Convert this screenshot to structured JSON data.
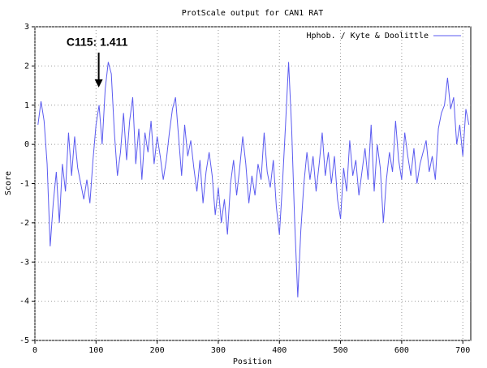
{
  "chart_data": {
    "type": "line",
    "title": "ProtScale output for CAN1 RAT",
    "x_label": "Position",
    "y_label": "Score",
    "xlim": [
      0,
      713
    ],
    "ylim": [
      -5,
      3
    ],
    "xticks": [
      0,
      100,
      200,
      300,
      400,
      500,
      600,
      700
    ],
    "yticks": [
      -5,
      -4,
      -3,
      -2,
      -1,
      0,
      1,
      2,
      3
    ],
    "grid": true,
    "legend": "top-right",
    "annotation": {
      "text": "C115: 1.411",
      "x": 115,
      "y": 1.411
    },
    "x": [
      5,
      10,
      15,
      20,
      25,
      30,
      35,
      40,
      45,
      50,
      55,
      60,
      65,
      70,
      75,
      80,
      85,
      90,
      95,
      100,
      105,
      110,
      115,
      120,
      125,
      130,
      135,
      140,
      145,
      150,
      155,
      160,
      165,
      170,
      175,
      180,
      185,
      190,
      195,
      200,
      205,
      210,
      215,
      220,
      225,
      230,
      235,
      240,
      245,
      250,
      255,
      260,
      265,
      270,
      275,
      280,
      285,
      290,
      295,
      300,
      305,
      310,
      315,
      320,
      325,
      330,
      335,
      340,
      345,
      350,
      355,
      360,
      365,
      370,
      375,
      380,
      385,
      390,
      395,
      400,
      405,
      410,
      415,
      420,
      425,
      430,
      435,
      440,
      445,
      450,
      455,
      460,
      465,
      470,
      475,
      480,
      485,
      490,
      495,
      500,
      505,
      510,
      515,
      520,
      525,
      530,
      535,
      540,
      545,
      550,
      555,
      560,
      565,
      570,
      575,
      580,
      585,
      590,
      595,
      600,
      605,
      610,
      615,
      620,
      625,
      630,
      635,
      640,
      645,
      650,
      655,
      660,
      665,
      670,
      675,
      680,
      685,
      690,
      695,
      700,
      705,
      710
    ],
    "series": [
      {
        "name": "Hphob. / Kyte & Doolittle",
        "color": "#5b5bf0",
        "values": [
          0.5,
          1.1,
          0.6,
          -0.5,
          -2.6,
          -1.5,
          -0.7,
          -2.0,
          -0.5,
          -1.2,
          0.3,
          -0.8,
          0.2,
          -0.6,
          -1.0,
          -1.4,
          -0.9,
          -1.5,
          -0.4,
          0.5,
          1.0,
          0.0,
          1.411,
          2.1,
          1.8,
          0.3,
          -0.8,
          -0.2,
          0.8,
          -0.4,
          0.6,
          1.2,
          -0.5,
          0.4,
          -0.9,
          0.3,
          -0.2,
          0.6,
          -0.5,
          0.2,
          -0.3,
          -0.9,
          -0.4,
          0.3,
          0.9,
          1.2,
          0.2,
          -0.8,
          0.5,
          -0.3,
          0.1,
          -0.6,
          -1.2,
          -0.4,
          -1.5,
          -0.7,
          -0.2,
          -0.8,
          -1.8,
          -1.1,
          -2.0,
          -1.4,
          -2.3,
          -1.0,
          -0.4,
          -1.3,
          -0.6,
          0.2,
          -0.5,
          -1.5,
          -0.8,
          -1.3,
          -0.5,
          -0.9,
          0.3,
          -0.7,
          -1.1,
          -0.4,
          -1.6,
          -2.3,
          -1.0,
          0.5,
          2.1,
          0.4,
          -2.0,
          -3.9,
          -2.2,
          -1.0,
          -0.2,
          -0.9,
          -0.3,
          -1.2,
          -0.5,
          0.3,
          -0.8,
          -0.2,
          -1.0,
          -0.3,
          -1.4,
          -1.9,
          -0.6,
          -1.2,
          0.1,
          -0.8,
          -0.4,
          -1.3,
          -0.7,
          -0.1,
          -0.9,
          0.5,
          -1.2,
          0.0,
          -0.6,
          -2.0,
          -0.9,
          -0.2,
          -0.7,
          0.6,
          -0.4,
          -0.9,
          0.3,
          -0.3,
          -0.8,
          -0.1,
          -1.0,
          -0.5,
          -0.2,
          0.1,
          -0.7,
          -0.3,
          -0.9,
          0.4,
          0.8,
          1.0,
          1.7,
          0.9,
          1.2,
          0.0,
          0.5,
          -0.3,
          0.9,
          0.5
        ]
      }
    ]
  }
}
